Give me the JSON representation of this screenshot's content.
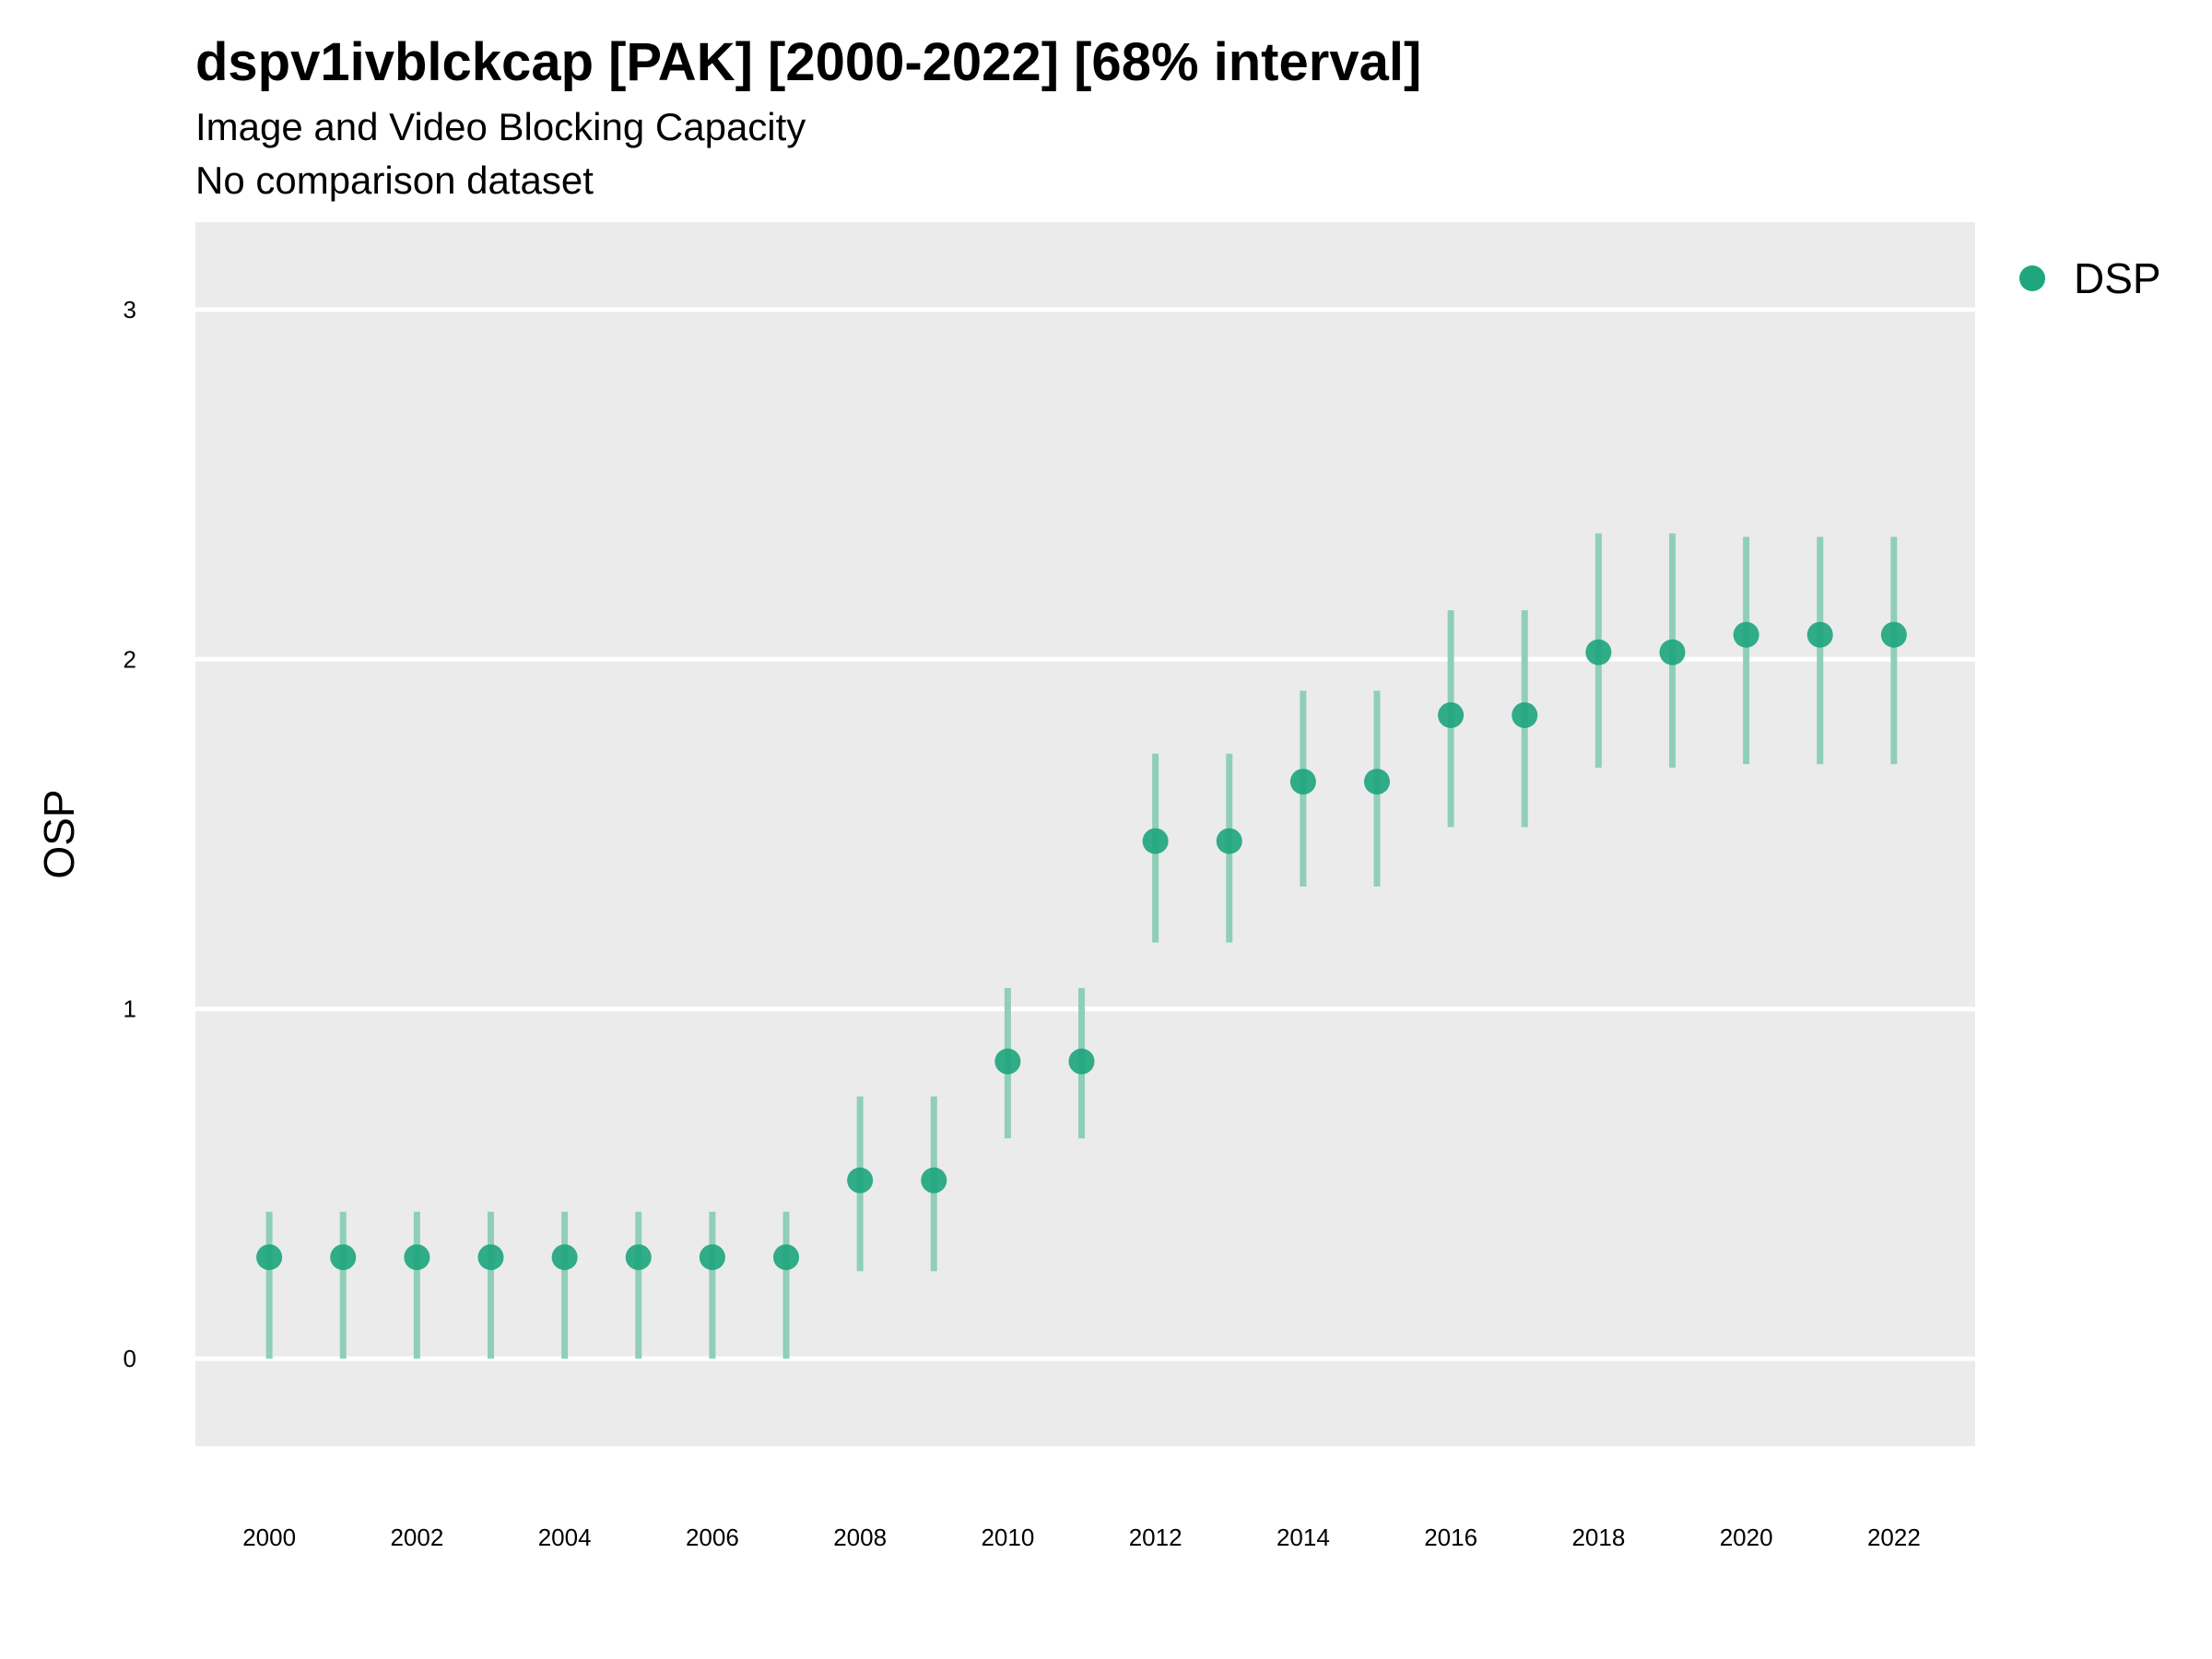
{
  "chart_data": {
    "type": "scatter",
    "title": "dspv1ivblckcap [PAK] [2000-2022] [68% interval]",
    "subtitle": "Image and Video Blocking Capacity",
    "caption": "No comparison dataset",
    "xlabel": "",
    "ylabel": "OSP",
    "xlim": [
      1999,
      2023.1
    ],
    "ylim": [
      -0.25,
      3.25
    ],
    "x_ticks": [
      2000,
      2002,
      2004,
      2006,
      2008,
      2010,
      2012,
      2014,
      2016,
      2018,
      2020,
      2022
    ],
    "y_ticks": [
      0,
      1,
      2,
      3
    ],
    "grid": true,
    "legend_position": "right",
    "colors": {
      "point": "#1fa67e",
      "interval": "#8fcfb9",
      "panel": "#ebebeb",
      "grid": "#ffffff"
    },
    "series": [
      {
        "name": "DSP",
        "x": [
          2000,
          2001,
          2002,
          2003,
          2004,
          2005,
          2006,
          2007,
          2008,
          2009,
          2010,
          2011,
          2012,
          2013,
          2014,
          2015,
          2016,
          2017,
          2018,
          2019,
          2020,
          2021,
          2022
        ],
        "y": [
          0.29,
          0.29,
          0.29,
          0.29,
          0.29,
          0.29,
          0.29,
          0.29,
          0.51,
          0.51,
          0.85,
          0.85,
          1.48,
          1.48,
          1.65,
          1.65,
          1.84,
          1.84,
          2.02,
          2.02,
          2.07,
          2.07,
          2.07
        ],
        "lower": [
          0.0,
          0.0,
          0.0,
          0.0,
          0.0,
          0.0,
          0.0,
          0.0,
          0.25,
          0.25,
          0.63,
          0.63,
          1.19,
          1.19,
          1.35,
          1.35,
          1.52,
          1.52,
          1.69,
          1.69,
          1.7,
          1.7,
          1.7
        ],
        "upper": [
          0.42,
          0.42,
          0.42,
          0.42,
          0.42,
          0.42,
          0.42,
          0.42,
          0.75,
          0.75,
          1.06,
          1.06,
          1.73,
          1.73,
          1.91,
          1.91,
          2.14,
          2.14,
          2.36,
          2.36,
          2.35,
          2.35,
          2.35
        ]
      }
    ]
  }
}
